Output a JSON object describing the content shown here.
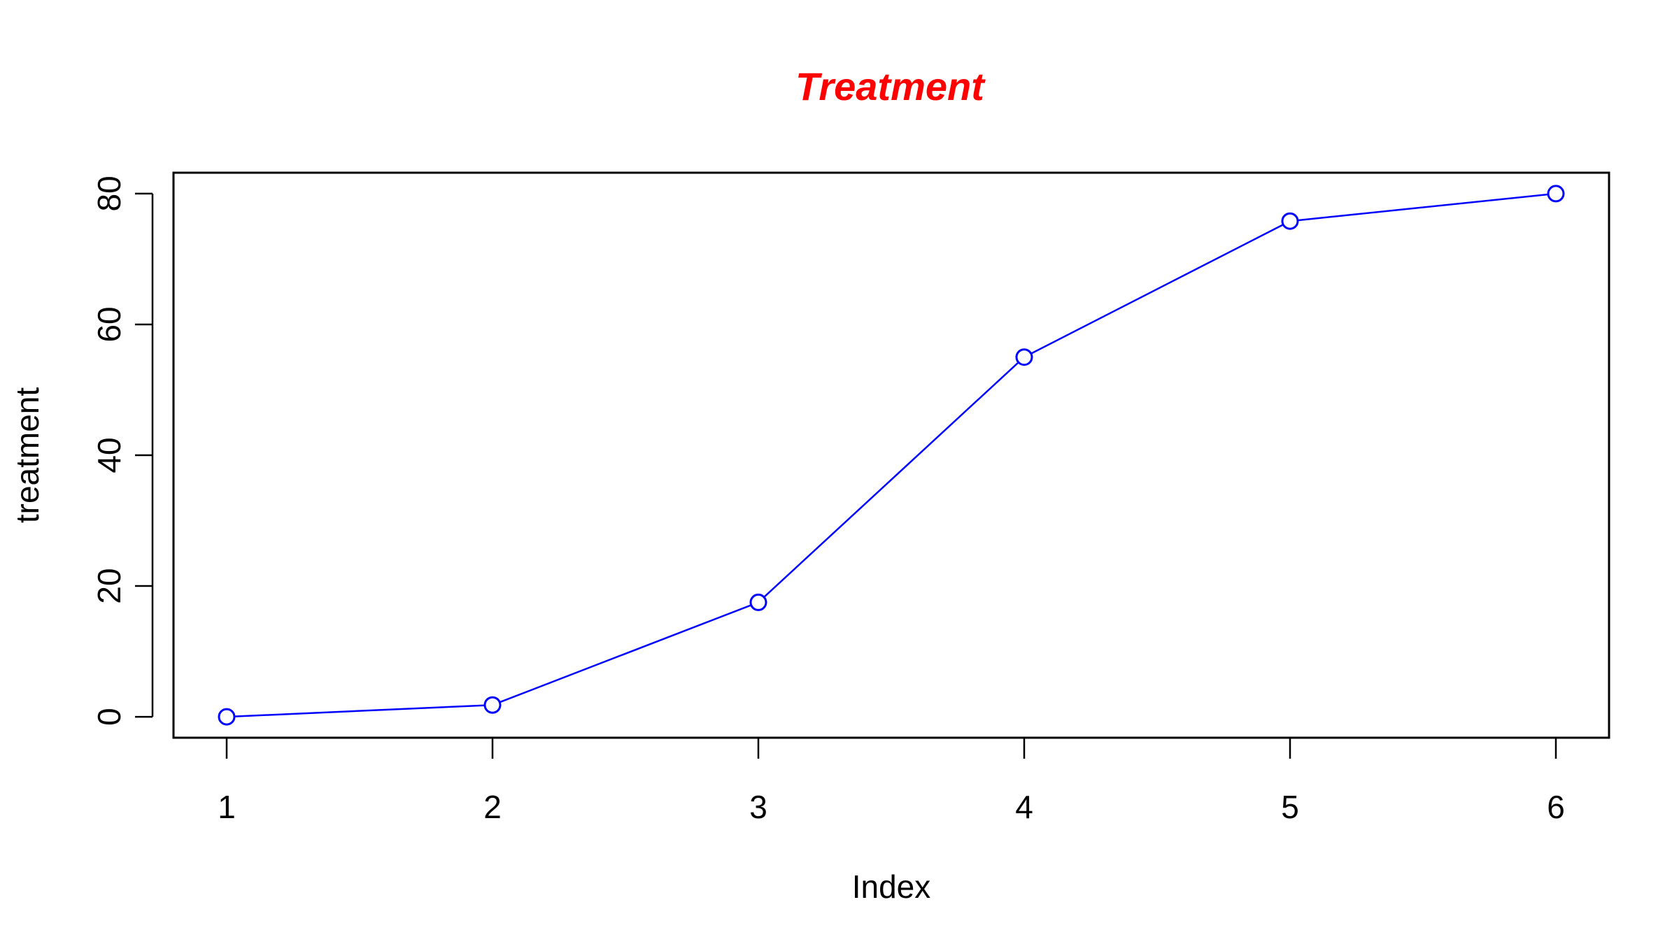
{
  "colors": {
    "title": "#ff0000",
    "series": "#0000ff",
    "axis": "#000000",
    "background": "#ffffff"
  },
  "chart_data": {
    "type": "line",
    "title": "Treatment",
    "xlabel": "Index",
    "ylabel": "treatment",
    "x": [
      1,
      2,
      3,
      4,
      5,
      6
    ],
    "series": [
      {
        "values": [
          0,
          1.8,
          17.5,
          55,
          75.8,
          80
        ],
        "marker": "open-circle",
        "line": "solid"
      }
    ],
    "xticks": [
      "1",
      "2",
      "3",
      "4",
      "5",
      "6"
    ],
    "yticks": [
      "0",
      "20",
      "40",
      "60",
      "80"
    ],
    "xlim": [
      0.8,
      6.2
    ],
    "ylim": [
      -3.2,
      83.2
    ],
    "grid": false,
    "legend": "none"
  }
}
